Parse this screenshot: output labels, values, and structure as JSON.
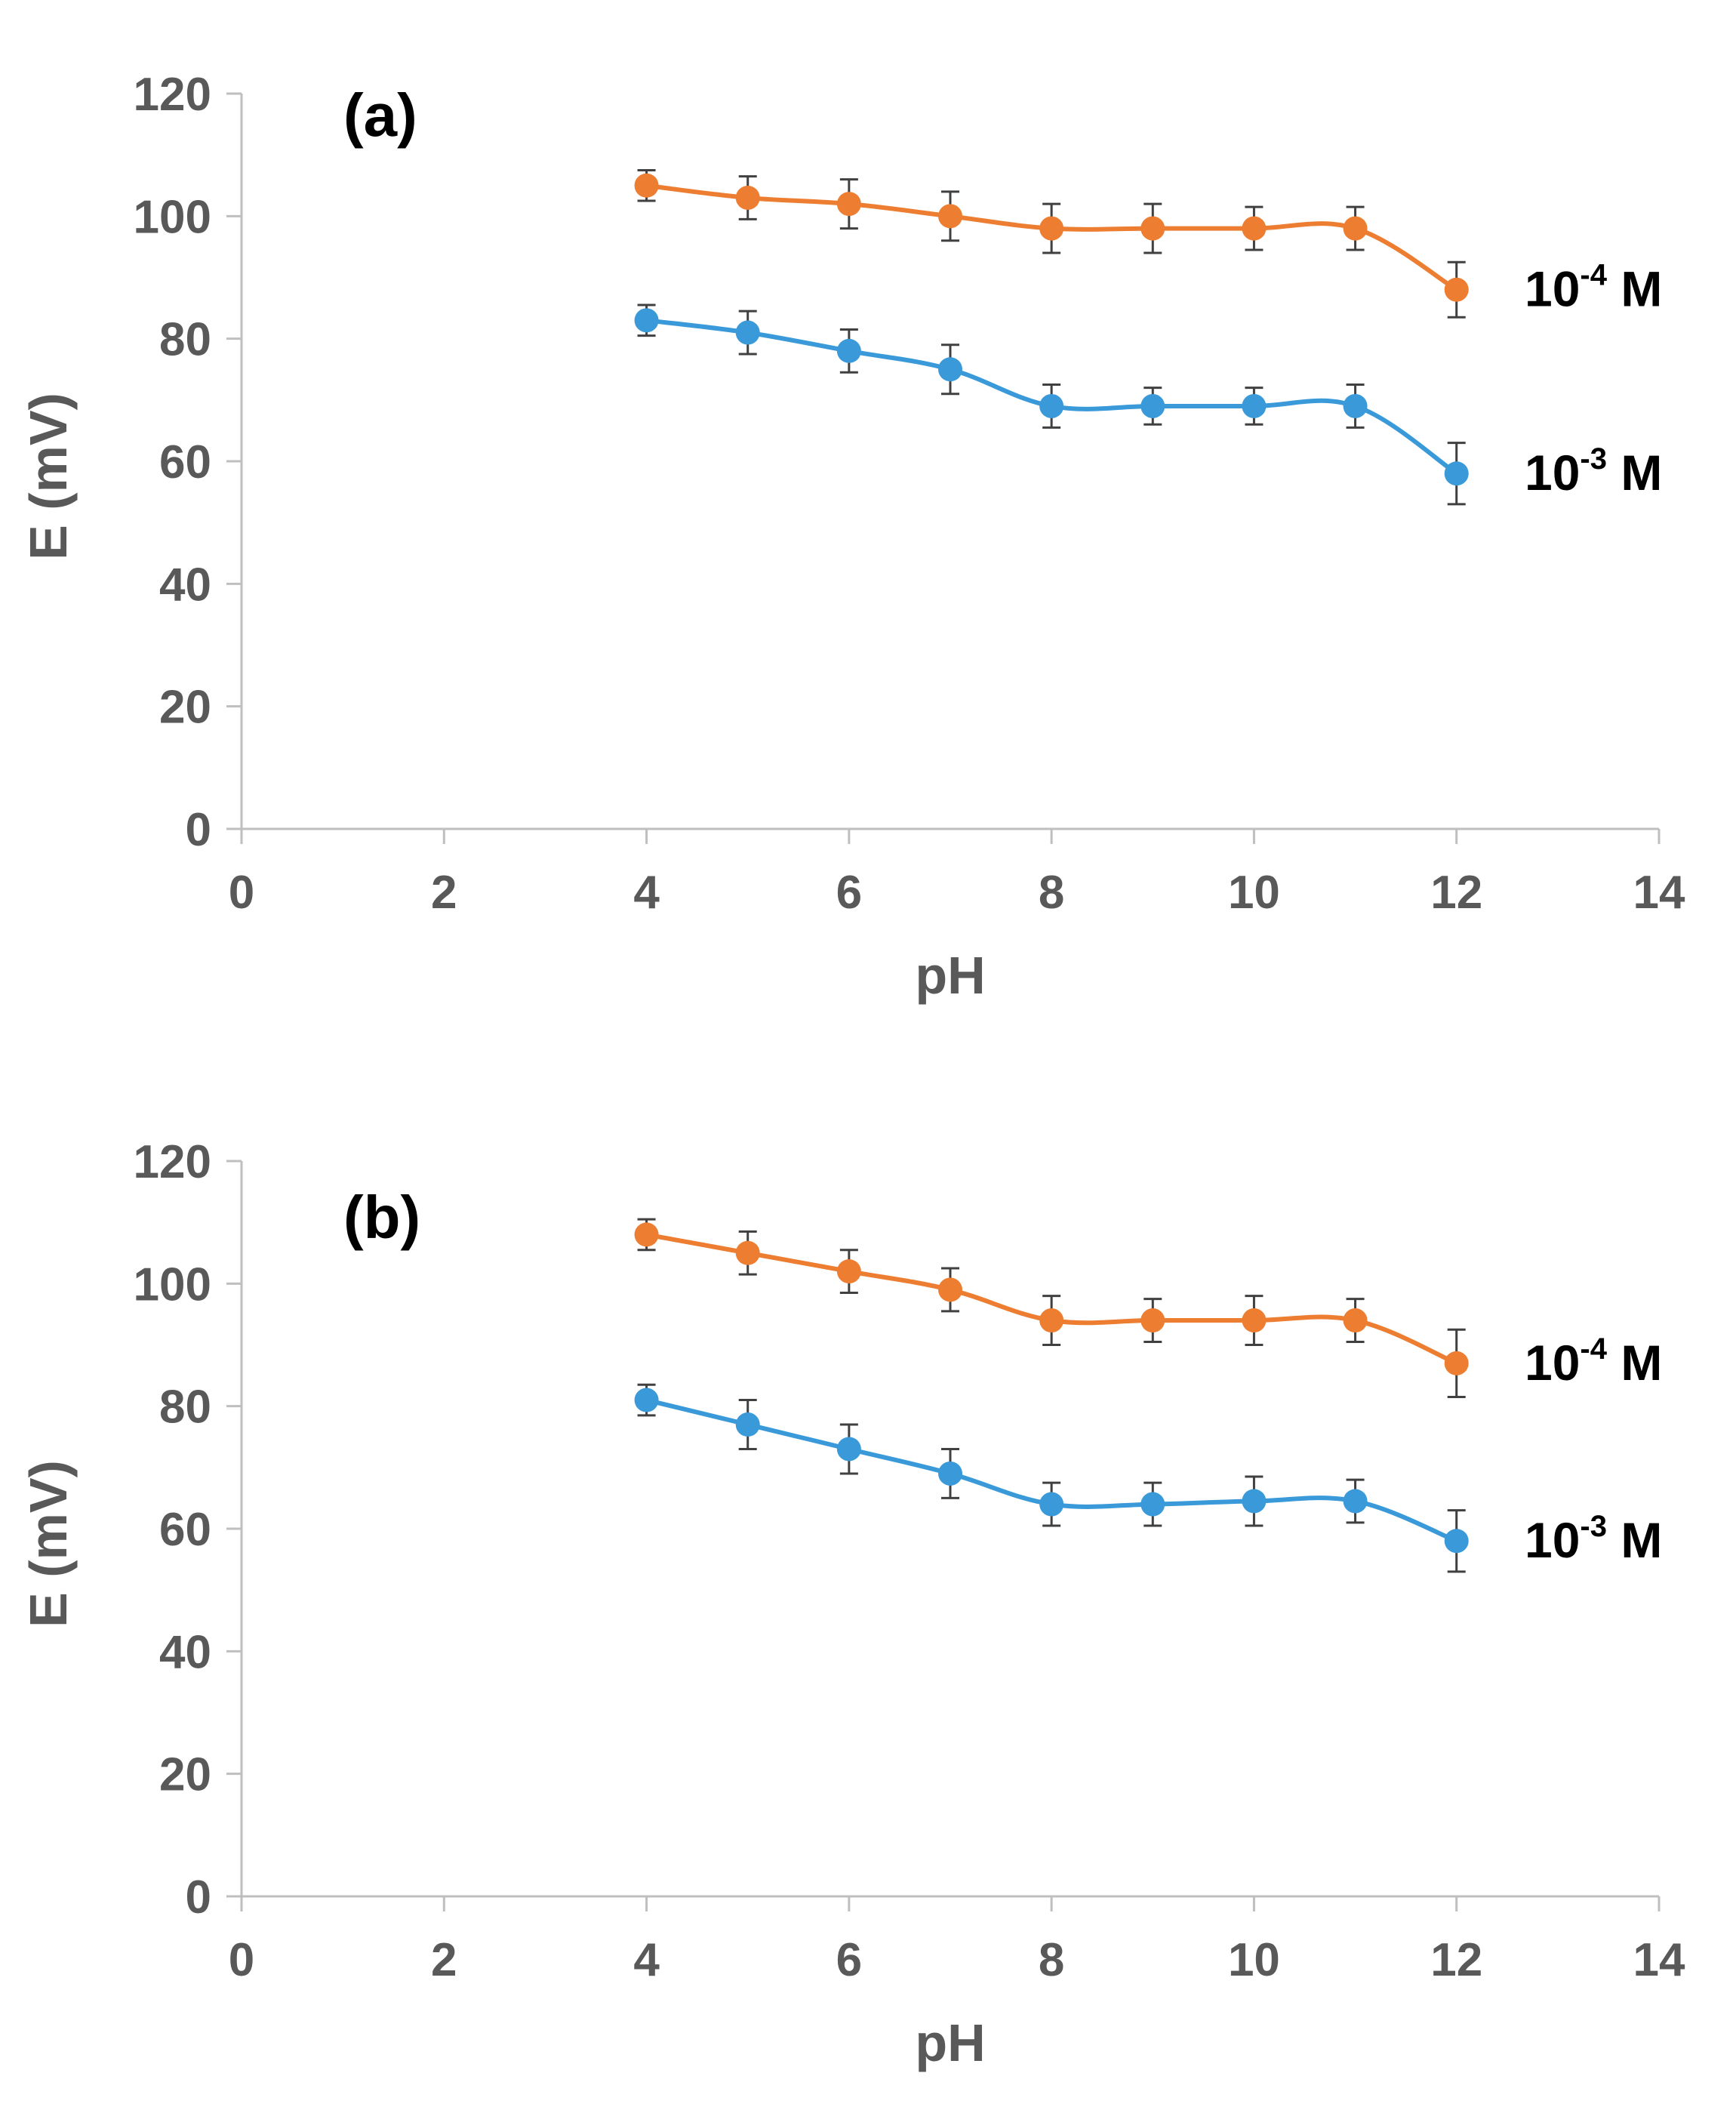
{
  "chart_data": [
    {
      "type": "line",
      "panel_label": "(a)",
      "xlabel": "pH",
      "ylabel": "E (mV)",
      "xlim": [
        0,
        14
      ],
      "ylim": [
        0,
        120
      ],
      "xticks": [
        0,
        2,
        4,
        6,
        8,
        10,
        12,
        14
      ],
      "yticks": [
        0,
        20,
        40,
        60,
        80,
        100,
        120
      ],
      "x": [
        4,
        5,
        6,
        7,
        8,
        9,
        10,
        11,
        12
      ],
      "series": [
        {
          "name": "10-4 M",
          "label_base": "10",
          "label_exp": "-4",
          "label_unit": "M",
          "color": "#ED7D31",
          "values": [
            105,
            103,
            102,
            100,
            98,
            98,
            98,
            98,
            88
          ],
          "errors": [
            2.5,
            3.5,
            4,
            4,
            4,
            4,
            3.5,
            3.5,
            4.5
          ]
        },
        {
          "name": "10-3 M",
          "label_base": "10",
          "label_exp": "-3",
          "label_unit": "M",
          "color": "#3A9AD9",
          "values": [
            83,
            81,
            78,
            75,
            69,
            69,
            69,
            69,
            58
          ],
          "errors": [
            2.5,
            3.5,
            3.5,
            4,
            3.5,
            3,
            3,
            3.5,
            5
          ]
        }
      ]
    },
    {
      "type": "line",
      "panel_label": "(b)",
      "xlabel": "pH",
      "ylabel": "E (mV)",
      "xlim": [
        0,
        14
      ],
      "ylim": [
        0,
        120
      ],
      "xticks": [
        0,
        2,
        4,
        6,
        8,
        10,
        12,
        14
      ],
      "yticks": [
        0,
        20,
        40,
        60,
        80,
        100,
        120
      ],
      "x": [
        4,
        5,
        6,
        7,
        8,
        9,
        10,
        11,
        12
      ],
      "series": [
        {
          "name": "10-4 M",
          "label_base": "10",
          "label_exp": "-4",
          "label_unit": "M",
          "color": "#ED7D31",
          "values": [
            108,
            105,
            102,
            99,
            94,
            94,
            94,
            94,
            87
          ],
          "errors": [
            2.5,
            3.5,
            3.5,
            3.5,
            4,
            3.5,
            4,
            3.5,
            5.5
          ]
        },
        {
          "name": "10-3 M",
          "label_base": "10",
          "label_exp": "-3",
          "label_unit": "M",
          "color": "#3A9AD9",
          "values": [
            81,
            77,
            73,
            69,
            64,
            64,
            64.5,
            64.5,
            58
          ],
          "errors": [
            2.5,
            4,
            4,
            4,
            3.5,
            3.5,
            4,
            3.5,
            5
          ]
        }
      ]
    }
  ]
}
